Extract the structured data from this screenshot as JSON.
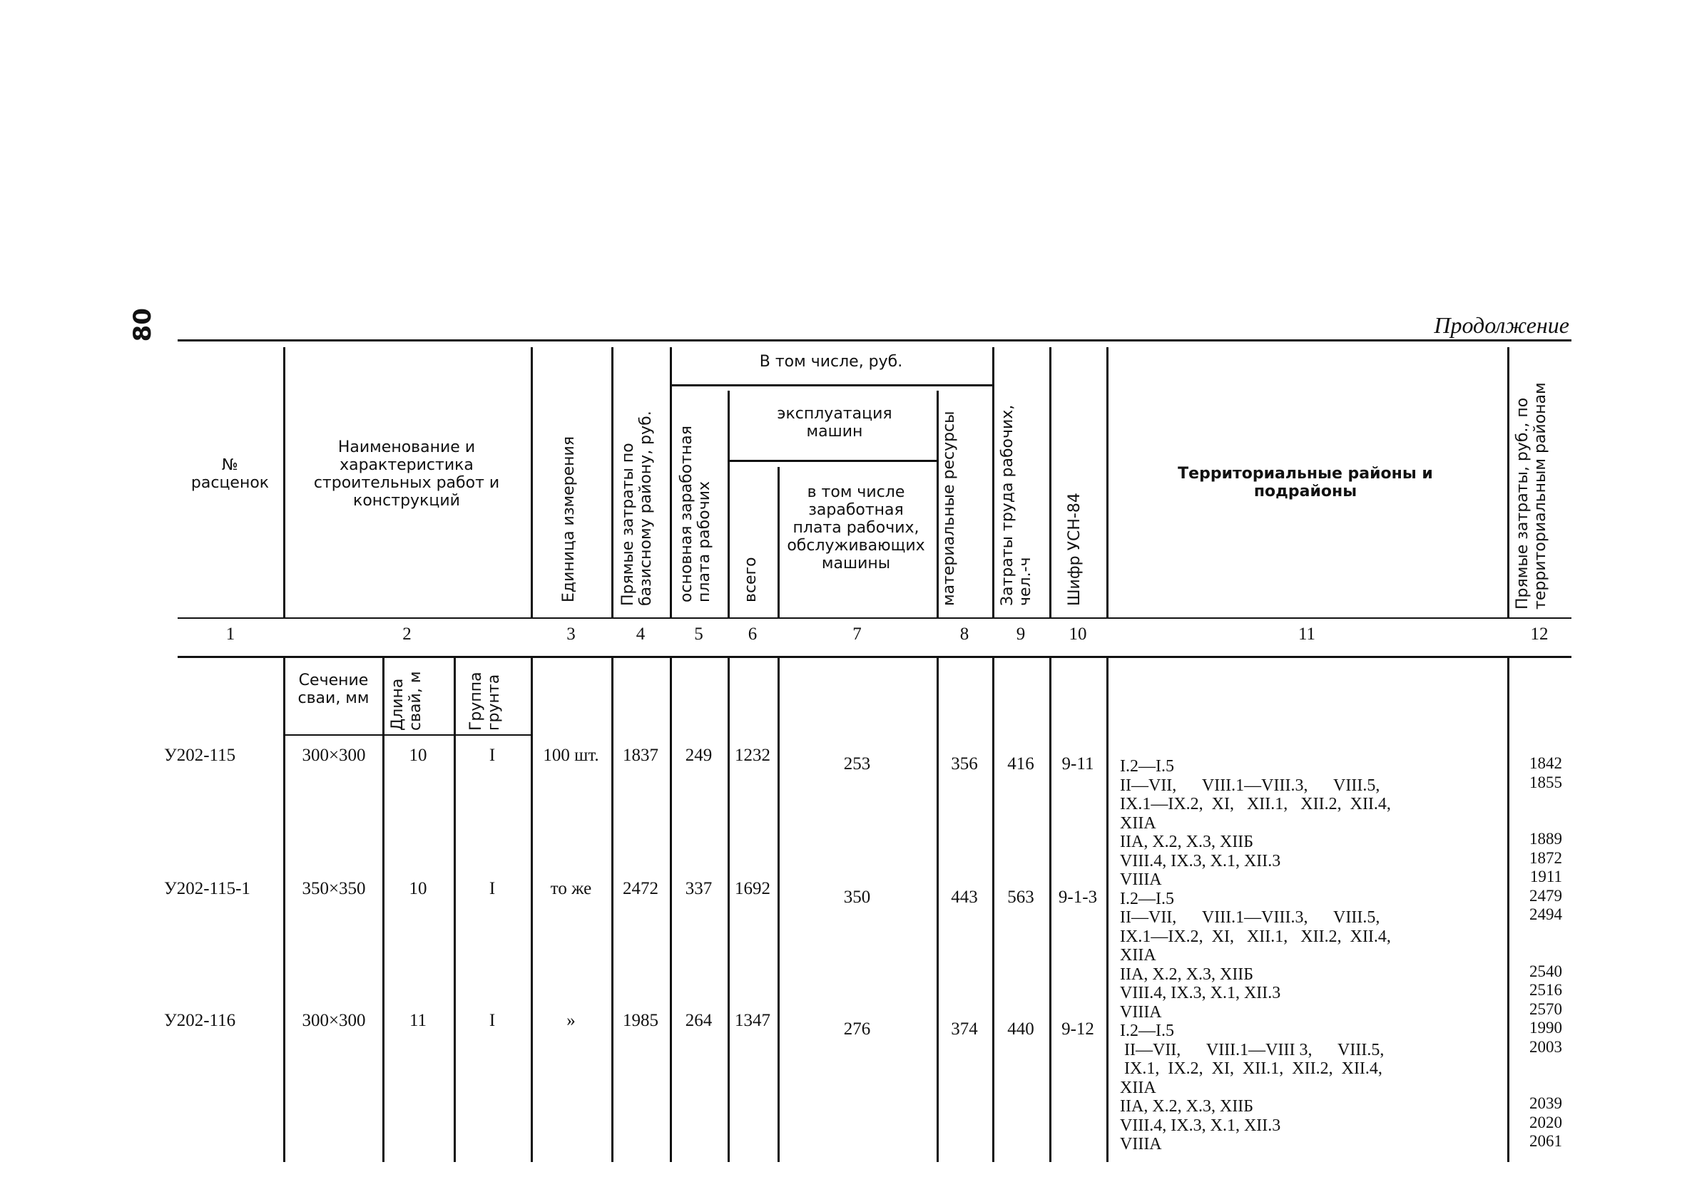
{
  "page_number": "80",
  "continuation": "Продолжение",
  "headers": {
    "c1": "№ расценок",
    "c2": "Наименование и характеристика строительных работ и конструкций",
    "c3": "Единица измерения",
    "c4": "Прямые затраты по базисному району, руб.",
    "group": "В том числе, руб.",
    "c5": "основная заработная плата рабочих",
    "mach": "эксплуатация машин",
    "c6": "всего",
    "c7": "в том числе заработная плата рабочих, обслуживающих машины",
    "c8": "материальные ресурсы",
    "c9": "Затраты труда рабочих, чел.-ч",
    "c10": "Шифр УСН-84",
    "c11": "Территориальные районы и подрайоны",
    "c12": "Прямые затраты, руб., по территориальным районам"
  },
  "col_numbers": [
    "1",
    "2",
    "3",
    "4",
    "5",
    "6",
    "7",
    "8",
    "9",
    "10",
    "11",
    "12"
  ],
  "subheaders": {
    "section": "Сечение сваи, мм",
    "length": "Длина свай, м",
    "group": "Группа грунта"
  },
  "rows": [
    {
      "code": "У202-115",
      "section": "300×300",
      "length": "10",
      "group": "I",
      "unit": "100 шт.",
      "direct": "1837",
      "wage": "249",
      "mach": "1232",
      "mach_wage": "253",
      "mat": "356",
      "labor": "416",
      "cipher": "9-11"
    },
    {
      "code": "У202-115-1",
      "section": "350×350",
      "length": "10",
      "group": "I",
      "unit": "то же",
      "direct": "2472",
      "wage": "337",
      "mach": "1692",
      "mach_wage": "350",
      "mat": "443",
      "labor": "563",
      "cipher": "9-1-3"
    },
    {
      "code": "У202-116",
      "section": "300×300",
      "length": "11",
      "group": "I",
      "unit": "»",
      "direct": "1985",
      "wage": "264",
      "mach": "1347",
      "mach_wage": "276",
      "mat": "374",
      "labor": "440",
      "cipher": "9-12"
    }
  ],
  "territories": [
    "I.2—I.5",
    "II—VII,      VIII.1—VIII.3,      VIII.5,",
    "IX.1—IX.2,  XI,   XII.1,   XII.2,  XII.4,",
    "XIIA",
    "IIA, X.2, X.3, XIIБ",
    "VIII.4, IX.3, X.1, XII.3",
    "VIIIA",
    "I.2—I.5",
    "II—VII,      VIII.1—VIII.3,      VIII.5,",
    "IX.1—IX.2,  XI,   XII.1,   XII.2,  XII.4,",
    "XIIA",
    "IIA, X.2, X.3, XIIБ",
    "VIII.4, IX.3, X.1, XII.3",
    "VIIIA",
    "I.2—I.5",
    " II—VII,      VIII.1—VIII 3,      VIII.5,",
    " IX.1,  IX.2,  XI,  XII.1,  XII.2,  XII.4,",
    "XIIA",
    "IIA, X.2, X.3, XIIБ",
    "VIII.4, IX.3, X.1, XII.3",
    "VIIIA"
  ],
  "prices": [
    "1842",
    "1855",
    "",
    "",
    "1889",
    "1872",
    "1911",
    "2479",
    "2494",
    "",
    "",
    "2540",
    "2516",
    "2570",
    "1990",
    "2003",
    "",
    "",
    "2039",
    "2020",
    "2061"
  ]
}
